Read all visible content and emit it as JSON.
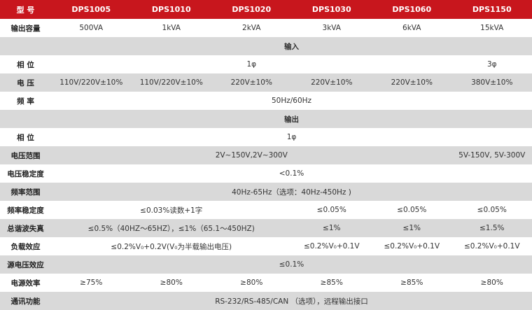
{
  "header": {
    "label": "型 号",
    "models": [
      "DPS1005",
      "DPS1010",
      "DPS1020",
      "DPS1030",
      "DPS1060",
      "DPS1150"
    ]
  },
  "capacity": {
    "label": "输出容量",
    "values": [
      "500VA",
      "1kVA",
      "2kVA",
      "3kVA",
      "6kVA",
      "15kVA"
    ]
  },
  "input": {
    "title": "输入",
    "phase": {
      "label": "相 位",
      "values": [
        "1φ",
        "3φ"
      ]
    },
    "voltage": {
      "label": "电 压",
      "values": [
        "110V/220V±10%",
        "110V/220V±10%",
        "220V±10%",
        "220V±10%",
        "220V±10%",
        "380V±10%"
      ]
    },
    "frequency": {
      "label": "频 率",
      "value": "50Hz/60Hz"
    }
  },
  "output": {
    "title": "输出",
    "phase": {
      "label": "相 位",
      "value": "1φ"
    },
    "voltage_range": {
      "label": "电压范围",
      "values": [
        "2V~150V,2V~300V",
        "5V-150V, 5V-300V"
      ]
    },
    "voltage_stability": {
      "label": "电压稳定度",
      "value": "<0.1%"
    },
    "frequency_range": {
      "label": "频率范围",
      "value": "40Hz-65Hz（选项：40Hz-450Hz )"
    },
    "frequency_stability": {
      "label": "频率稳定度",
      "values": [
        "≤0.03%读数+1字",
        "≤0.05%",
        "≤0.05%",
        "≤0.05%"
      ]
    },
    "thd": {
      "label": "总谐波失真",
      "values": [
        "≤0.5%（40HZ～65HZ），≤1%（65.1～450HZ)",
        "≤1%",
        "≤1%",
        "≤1.5%"
      ]
    },
    "load_effect": {
      "label": "负载效应",
      "values": [
        "≤0.2%V₀+0.2V(V₀为半载输出电压)",
        "≤0.2%V₀+0.1V",
        "≤0.2%V₀+0.1V",
        "≤0.2%V₀+0.1V"
      ]
    },
    "source_effect": {
      "label": "源电压效应",
      "value": "≤0.1%"
    },
    "efficiency": {
      "label": "电源效率",
      "values": [
        "≥75%",
        "≥80%",
        "≥80%",
        "≥85%",
        "≥85%",
        "≥80%"
      ]
    },
    "communication": {
      "label": "通讯功能",
      "value": "RS-232/RS-485/CAN （选项），远程输出接口"
    }
  }
}
